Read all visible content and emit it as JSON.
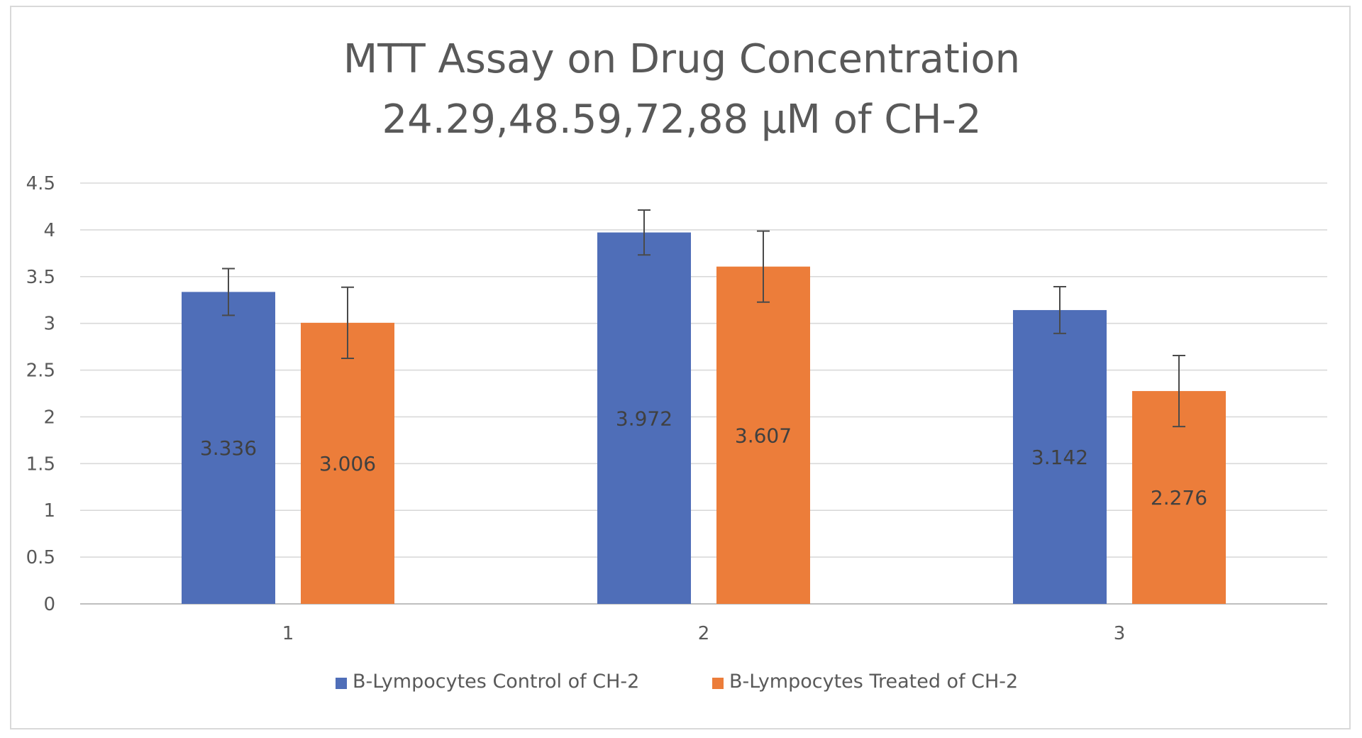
{
  "chart_data": {
    "type": "bar",
    "title_lines": [
      "MTT Assay on Drug Concentration",
      "24.29,48.59,72,88 μM of CH-2"
    ],
    "xlabel": "",
    "ylabel": "",
    "categories": [
      "1",
      "2",
      "3"
    ],
    "ylim": [
      0,
      4.5
    ],
    "y_ticks": [
      "0",
      "0.5",
      "1",
      "1.5",
      "2",
      "2.5",
      "3",
      "3.5",
      "4",
      "4.5"
    ],
    "grid": true,
    "legend_position": "bottom",
    "series": [
      {
        "name": "B-Lympocytes Control of CH-2",
        "color": "#4f6eb8",
        "values": [
          3.336,
          3.972,
          3.142
        ],
        "labels": [
          "3.336",
          "3.972",
          "3.142"
        ],
        "error": [
          0.25,
          0.24,
          0.25
        ]
      },
      {
        "name": "B-Lympocytes Treated of CH-2",
        "color": "#ec7d3a",
        "values": [
          3.006,
          3.607,
          2.276
        ],
        "labels": [
          "3.006",
          "3.607",
          "2.276"
        ],
        "error": [
          0.38,
          0.38,
          0.38
        ]
      }
    ]
  }
}
